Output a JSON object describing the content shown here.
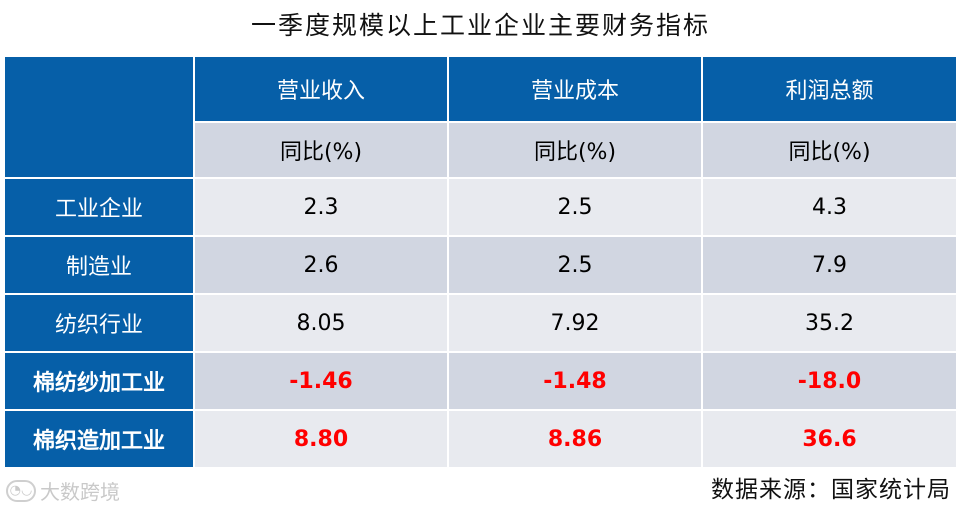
{
  "title": "一季度规模以上工业企业主要财务指标",
  "source": "数据来源：国家统计局",
  "watermark": "大数跨境",
  "chart_data": {
    "type": "table",
    "columns": [
      "营业收入",
      "营业成本",
      "利润总额"
    ],
    "subheader": "同比(%)",
    "rows": [
      {
        "name": "工业企业",
        "bold": false,
        "values": [
          "2.3",
          "2.5",
          "4.3"
        ]
      },
      {
        "name": "制造业",
        "bold": false,
        "values": [
          "2.6",
          "2.5",
          "7.9"
        ]
      },
      {
        "name": "纺织行业",
        "bold": false,
        "values": [
          "8.05",
          "7.92",
          "35.2"
        ]
      },
      {
        "name": "棉纺纱加工业",
        "bold": true,
        "values": [
          "-1.46",
          "-1.48",
          "-18.0"
        ]
      },
      {
        "name": "棉织造加工业",
        "bold": true,
        "values": [
          "8.80",
          "8.86",
          "36.6"
        ]
      }
    ],
    "colors": {
      "header": "#065FA8",
      "highlight": "#FF0000"
    }
  }
}
